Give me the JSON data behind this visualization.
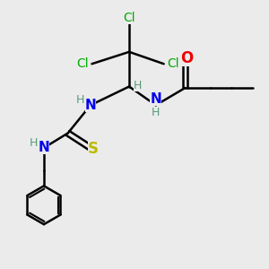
{
  "bg_color": "#ebebeb",
  "bond_color": "#000000",
  "bond_width": 1.8,
  "atom_colors": {
    "C": "#000000",
    "H": "#5a9a7a",
    "N": "#0000ee",
    "O": "#ee0000",
    "S": "#bbbb00",
    "Cl": "#00aa00"
  },
  "font_size": 10,
  "small_font": 9
}
